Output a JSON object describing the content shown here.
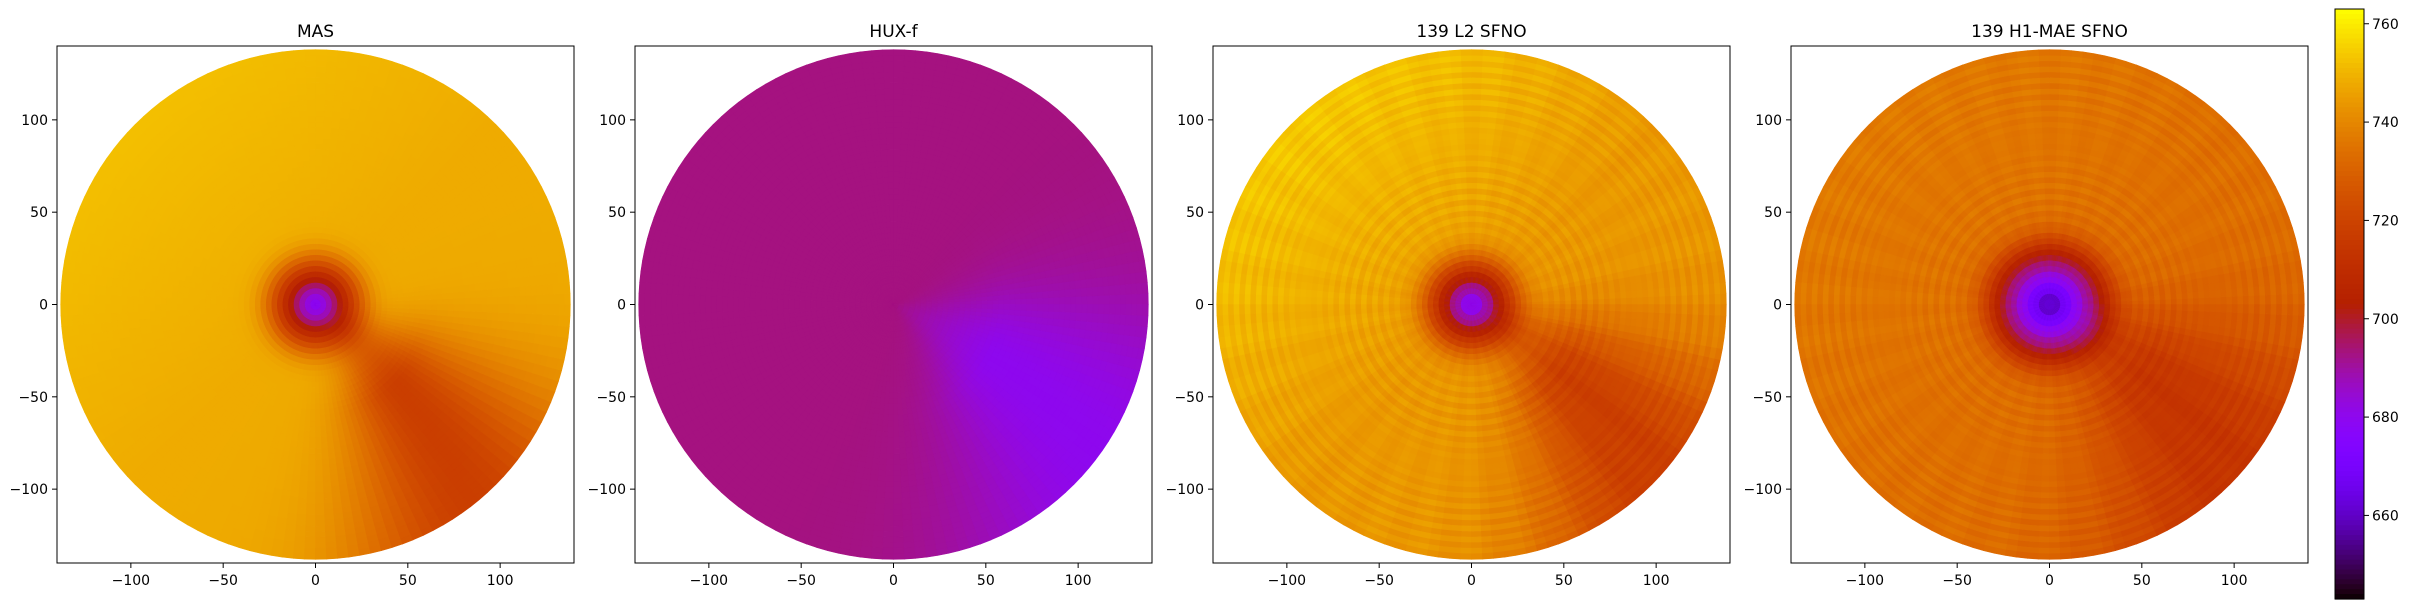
{
  "chart_data": [
    {
      "type": "heatmap",
      "title": "MAS",
      "xticks": [
        "−100",
        "−50",
        "0",
        "50",
        "100"
      ],
      "yticks": [
        "100",
        "50",
        "0",
        "−50",
        "−100"
      ],
      "xlim": [
        -140,
        140
      ],
      "ylim": [
        -140,
        140
      ],
      "disk_radius": 138,
      "field": {
        "base_value": 748,
        "outer_gradient_value": 752,
        "wedge": {
          "angle_deg": -38,
          "width_deg": 40,
          "value": 718,
          "strength": 1.0
        },
        "center_hole": {
          "value": 680,
          "radius": 22
        },
        "stripes": 0
      }
    },
    {
      "type": "heatmap",
      "title": "HUX-f",
      "xticks": [
        "−100",
        "−50",
        "0",
        "50",
        "100"
      ],
      "yticks": [
        "100",
        "50",
        "0",
        "−50",
        "−100"
      ],
      "xlim": [
        -140,
        140
      ],
      "ylim": [
        -140,
        140
      ],
      "disk_radius": 138,
      "field": {
        "base_value": 693,
        "outer_gradient_value": 693,
        "wedge": {
          "angle_deg": -22,
          "width_deg": 48,
          "value": 680,
          "strength": 1.0
        },
        "center_hole": null,
        "stripes": 0
      }
    },
    {
      "type": "heatmap",
      "title": "139 L2 SFNO",
      "xticks": [
        "−100",
        "−50",
        "0",
        "50",
        "100"
      ],
      "yticks": [
        "100",
        "50",
        "0",
        "−50",
        "−100"
      ],
      "xlim": [
        -140,
        140
      ],
      "ylim": [
        -140,
        140
      ],
      "disk_radius": 138,
      "field": {
        "base_value": 744,
        "outer_gradient_value": 754,
        "wedge": {
          "angle_deg": -30,
          "width_deg": 42,
          "value": 718,
          "strength": 1.0
        },
        "center_hole": {
          "value": 680,
          "radius": 22
        },
        "stripes": 1
      }
    },
    {
      "type": "heatmap",
      "title": "139 H1-MAE SFNO",
      "xticks": [
        "−100",
        "−50",
        "0",
        "50",
        "100"
      ],
      "yticks": [
        "100",
        "50",
        "0",
        "−50",
        "−100"
      ],
      "xlim": [
        -140,
        140
      ],
      "ylim": [
        -140,
        140
      ],
      "disk_radius": 138,
      "field": {
        "base_value": 734,
        "outer_gradient_value": 737,
        "wedge": {
          "angle_deg": -30,
          "width_deg": 48,
          "value": 714,
          "strength": 1.0
        },
        "center_hole": {
          "value": 660,
          "radius": 30
        },
        "stripes": 1
      }
    }
  ],
  "colorbar": {
    "min": 643,
    "max": 763,
    "ticks": [
      "760",
      "740",
      "720",
      "700",
      "680",
      "660"
    ],
    "tick_values": [
      760,
      740,
      720,
      700,
      680,
      660
    ],
    "colormap": "gnuplot"
  }
}
